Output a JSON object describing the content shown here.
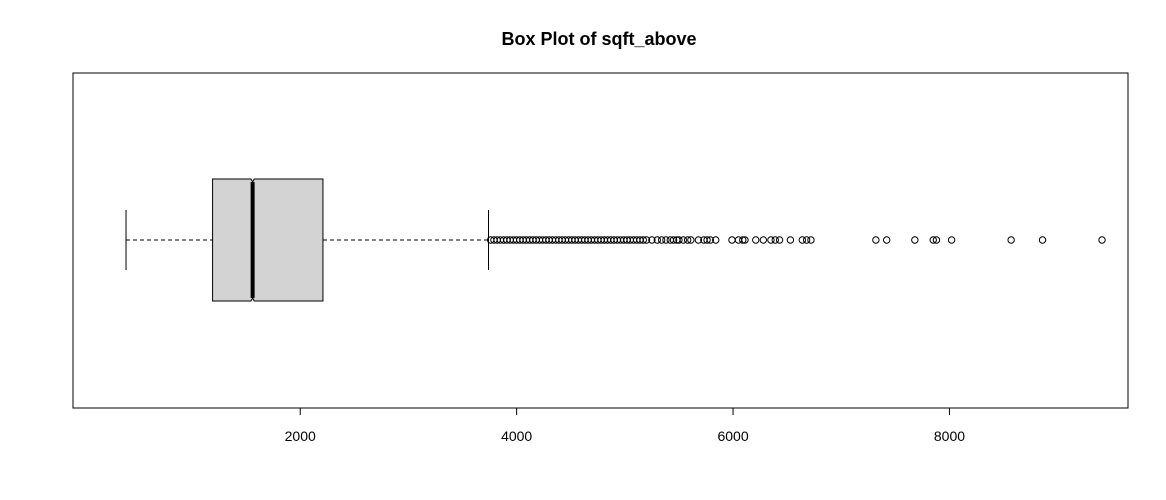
{
  "chart_data": {
    "type": "boxplot",
    "orientation": "horizontal",
    "notched": true,
    "title": "Box Plot of  sqft_above",
    "xlim": [
      -100,
      9650
    ],
    "x_ticks": [
      2000,
      4000,
      6000,
      8000
    ],
    "x_tick_labels": [
      "2000",
      "4000",
      "6000",
      "8000"
    ],
    "stats": {
      "whisker_low": 390,
      "q1": 1190,
      "median": 1560,
      "q3": 2210,
      "whisker_high": 3740,
      "notch_low": 1545,
      "notch_high": 1575
    },
    "outliers": [
      3760,
      3790,
      3820,
      3850,
      3880,
      3910,
      3940,
      3970,
      4000,
      4030,
      4060,
      4090,
      4120,
      4150,
      4180,
      4210,
      4240,
      4270,
      4300,
      4330,
      4360,
      4390,
      4420,
      4450,
      4480,
      4510,
      4540,
      4570,
      4600,
      4630,
      4660,
      4690,
      4720,
      4750,
      4780,
      4810,
      4840,
      4870,
      4900,
      4930,
      4960,
      4990,
      5020,
      5050,
      5080,
      5110,
      5140,
      5170,
      5200,
      5250,
      5300,
      5340,
      5380,
      5420,
      5450,
      5480,
      5500,
      5540,
      5580,
      5610,
      5680,
      5730,
      5760,
      5790,
      5840,
      5990,
      6050,
      6090,
      6110,
      6210,
      6280,
      6350,
      6390,
      6430,
      6530,
      6640,
      6680,
      6720,
      7320,
      7420,
      7680,
      7850,
      7880,
      8020,
      8570,
      8860,
      9410
    ],
    "colors": {
      "box_fill": "#d3d3d3",
      "stroke": "#000000"
    }
  }
}
